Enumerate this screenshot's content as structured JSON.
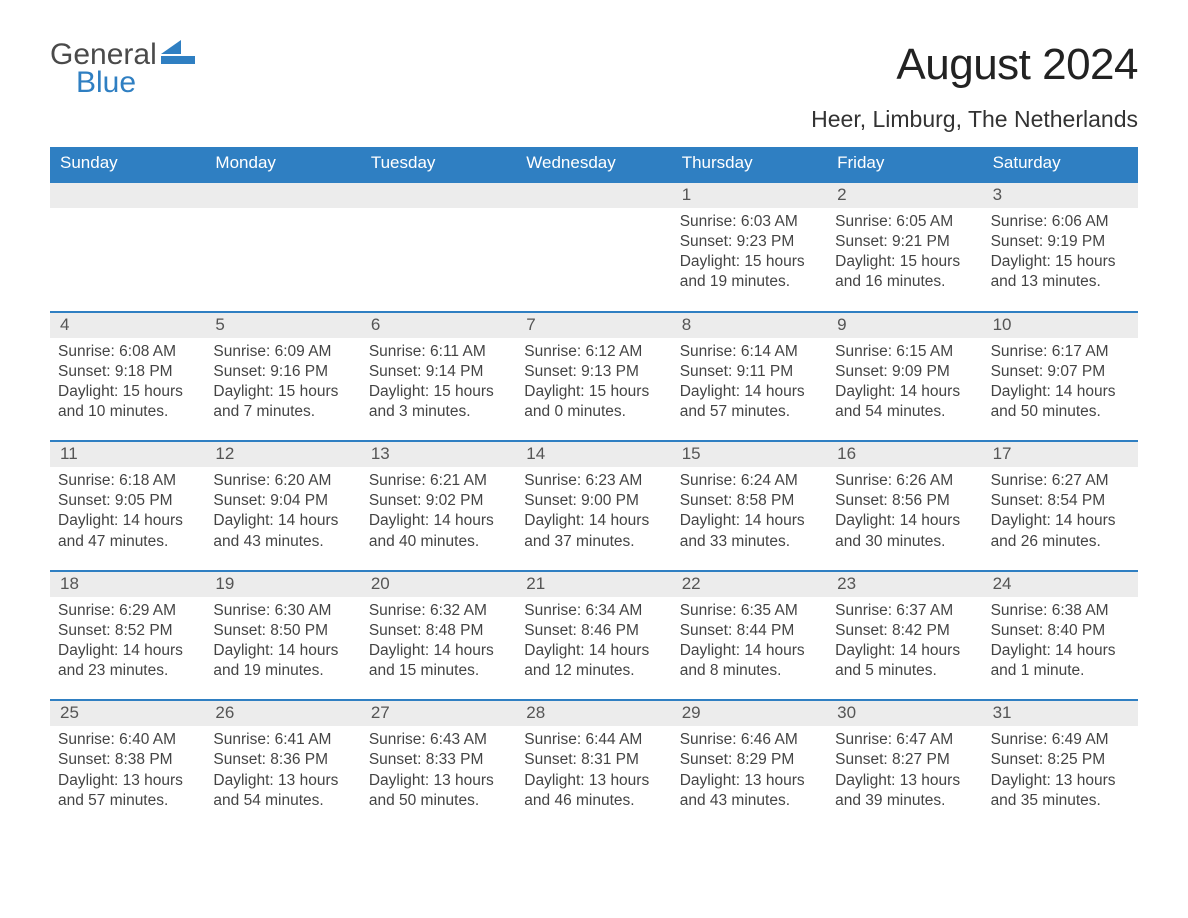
{
  "logo": {
    "text1": "General",
    "text2": "Blue"
  },
  "title": "August 2024",
  "location": "Heer, Limburg, The Netherlands",
  "colors": {
    "header_bg": "#2f7fc2",
    "header_text": "#ffffff",
    "daynum_bg": "#ececec",
    "daynum_border": "#2f7fc2",
    "page_bg": "#ffffff",
    "text": "#333333",
    "logo_gray": "#4a4a4a",
    "logo_blue": "#2f7fc2"
  },
  "dow": [
    "Sunday",
    "Monday",
    "Tuesday",
    "Wednesday",
    "Thursday",
    "Friday",
    "Saturday"
  ],
  "weeks": [
    [
      {
        "n": "",
        "sr": "",
        "ss": "",
        "dl": ""
      },
      {
        "n": "",
        "sr": "",
        "ss": "",
        "dl": ""
      },
      {
        "n": "",
        "sr": "",
        "ss": "",
        "dl": ""
      },
      {
        "n": "",
        "sr": "",
        "ss": "",
        "dl": ""
      },
      {
        "n": "1",
        "sr": "Sunrise: 6:03 AM",
        "ss": "Sunset: 9:23 PM",
        "dl": "Daylight: 15 hours and 19 minutes."
      },
      {
        "n": "2",
        "sr": "Sunrise: 6:05 AM",
        "ss": "Sunset: 9:21 PM",
        "dl": "Daylight: 15 hours and 16 minutes."
      },
      {
        "n": "3",
        "sr": "Sunrise: 6:06 AM",
        "ss": "Sunset: 9:19 PM",
        "dl": "Daylight: 15 hours and 13 minutes."
      }
    ],
    [
      {
        "n": "4",
        "sr": "Sunrise: 6:08 AM",
        "ss": "Sunset: 9:18 PM",
        "dl": "Daylight: 15 hours and 10 minutes."
      },
      {
        "n": "5",
        "sr": "Sunrise: 6:09 AM",
        "ss": "Sunset: 9:16 PM",
        "dl": "Daylight: 15 hours and 7 minutes."
      },
      {
        "n": "6",
        "sr": "Sunrise: 6:11 AM",
        "ss": "Sunset: 9:14 PM",
        "dl": "Daylight: 15 hours and 3 minutes."
      },
      {
        "n": "7",
        "sr": "Sunrise: 6:12 AM",
        "ss": "Sunset: 9:13 PM",
        "dl": "Daylight: 15 hours and 0 minutes."
      },
      {
        "n": "8",
        "sr": "Sunrise: 6:14 AM",
        "ss": "Sunset: 9:11 PM",
        "dl": "Daylight: 14 hours and 57 minutes."
      },
      {
        "n": "9",
        "sr": "Sunrise: 6:15 AM",
        "ss": "Sunset: 9:09 PM",
        "dl": "Daylight: 14 hours and 54 minutes."
      },
      {
        "n": "10",
        "sr": "Sunrise: 6:17 AM",
        "ss": "Sunset: 9:07 PM",
        "dl": "Daylight: 14 hours and 50 minutes."
      }
    ],
    [
      {
        "n": "11",
        "sr": "Sunrise: 6:18 AM",
        "ss": "Sunset: 9:05 PM",
        "dl": "Daylight: 14 hours and 47 minutes."
      },
      {
        "n": "12",
        "sr": "Sunrise: 6:20 AM",
        "ss": "Sunset: 9:04 PM",
        "dl": "Daylight: 14 hours and 43 minutes."
      },
      {
        "n": "13",
        "sr": "Sunrise: 6:21 AM",
        "ss": "Sunset: 9:02 PM",
        "dl": "Daylight: 14 hours and 40 minutes."
      },
      {
        "n": "14",
        "sr": "Sunrise: 6:23 AM",
        "ss": "Sunset: 9:00 PM",
        "dl": "Daylight: 14 hours and 37 minutes."
      },
      {
        "n": "15",
        "sr": "Sunrise: 6:24 AM",
        "ss": "Sunset: 8:58 PM",
        "dl": "Daylight: 14 hours and 33 minutes."
      },
      {
        "n": "16",
        "sr": "Sunrise: 6:26 AM",
        "ss": "Sunset: 8:56 PM",
        "dl": "Daylight: 14 hours and 30 minutes."
      },
      {
        "n": "17",
        "sr": "Sunrise: 6:27 AM",
        "ss": "Sunset: 8:54 PM",
        "dl": "Daylight: 14 hours and 26 minutes."
      }
    ],
    [
      {
        "n": "18",
        "sr": "Sunrise: 6:29 AM",
        "ss": "Sunset: 8:52 PM",
        "dl": "Daylight: 14 hours and 23 minutes."
      },
      {
        "n": "19",
        "sr": "Sunrise: 6:30 AM",
        "ss": "Sunset: 8:50 PM",
        "dl": "Daylight: 14 hours and 19 minutes."
      },
      {
        "n": "20",
        "sr": "Sunrise: 6:32 AM",
        "ss": "Sunset: 8:48 PM",
        "dl": "Daylight: 14 hours and 15 minutes."
      },
      {
        "n": "21",
        "sr": "Sunrise: 6:34 AM",
        "ss": "Sunset: 8:46 PM",
        "dl": "Daylight: 14 hours and 12 minutes."
      },
      {
        "n": "22",
        "sr": "Sunrise: 6:35 AM",
        "ss": "Sunset: 8:44 PM",
        "dl": "Daylight: 14 hours and 8 minutes."
      },
      {
        "n": "23",
        "sr": "Sunrise: 6:37 AM",
        "ss": "Sunset: 8:42 PM",
        "dl": "Daylight: 14 hours and 5 minutes."
      },
      {
        "n": "24",
        "sr": "Sunrise: 6:38 AM",
        "ss": "Sunset: 8:40 PM",
        "dl": "Daylight: 14 hours and 1 minute."
      }
    ],
    [
      {
        "n": "25",
        "sr": "Sunrise: 6:40 AM",
        "ss": "Sunset: 8:38 PM",
        "dl": "Daylight: 13 hours and 57 minutes."
      },
      {
        "n": "26",
        "sr": "Sunrise: 6:41 AM",
        "ss": "Sunset: 8:36 PM",
        "dl": "Daylight: 13 hours and 54 minutes."
      },
      {
        "n": "27",
        "sr": "Sunrise: 6:43 AM",
        "ss": "Sunset: 8:33 PM",
        "dl": "Daylight: 13 hours and 50 minutes."
      },
      {
        "n": "28",
        "sr": "Sunrise: 6:44 AM",
        "ss": "Sunset: 8:31 PM",
        "dl": "Daylight: 13 hours and 46 minutes."
      },
      {
        "n": "29",
        "sr": "Sunrise: 6:46 AM",
        "ss": "Sunset: 8:29 PM",
        "dl": "Daylight: 13 hours and 43 minutes."
      },
      {
        "n": "30",
        "sr": "Sunrise: 6:47 AM",
        "ss": "Sunset: 8:27 PM",
        "dl": "Daylight: 13 hours and 39 minutes."
      },
      {
        "n": "31",
        "sr": "Sunrise: 6:49 AM",
        "ss": "Sunset: 8:25 PM",
        "dl": "Daylight: 13 hours and 35 minutes."
      }
    ]
  ]
}
